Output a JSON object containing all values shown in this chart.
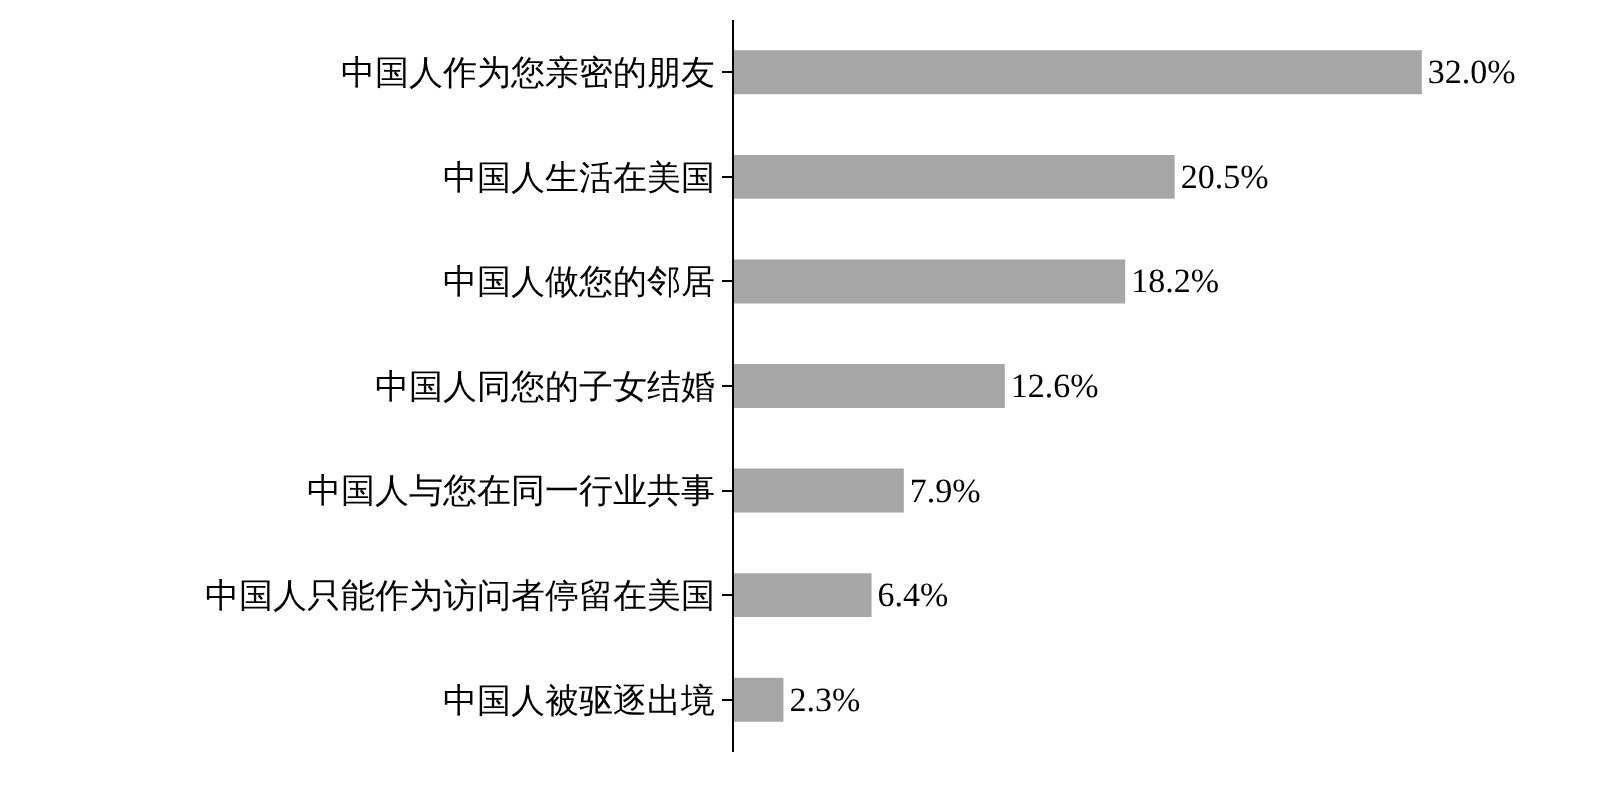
{
  "chart_data": {
    "type": "bar",
    "orientation": "horizontal",
    "categories": [
      "中国人作为您亲密的朋友",
      "中国人生活在美国",
      "中国人做您的邻居",
      "中国人同您的子女结婚",
      "中国人与您在同一行业共事",
      "中国人只能作为访问者停留在美国",
      "中国人被驱逐出境"
    ],
    "values": [
      32.0,
      20.5,
      18.2,
      12.6,
      7.9,
      6.4,
      2.3
    ],
    "value_labels": [
      "32.0%",
      "20.5%",
      "18.2%",
      "12.6%",
      "7.9%",
      "6.4%",
      "2.3%"
    ],
    "color": "#a6a6a6",
    "tick_labels": "y"
  }
}
